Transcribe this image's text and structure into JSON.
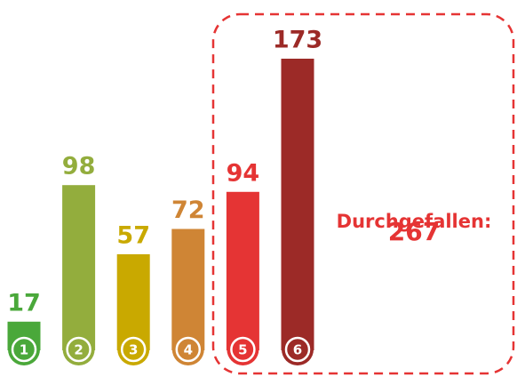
{
  "chart_data": {
    "type": "bar",
    "categories": [
      "1",
      "2",
      "3",
      "4",
      "5",
      "6"
    ],
    "values": [
      17,
      98,
      57,
      72,
      94,
      173
    ],
    "colors": [
      "#4aa83a",
      "#93ad3d",
      "#c9a900",
      "#cf8535",
      "#e53434",
      "#9c2a27"
    ],
    "annotation": {
      "label": "Durchgefallen:",
      "value": "267",
      "color": "#e53434"
    }
  }
}
